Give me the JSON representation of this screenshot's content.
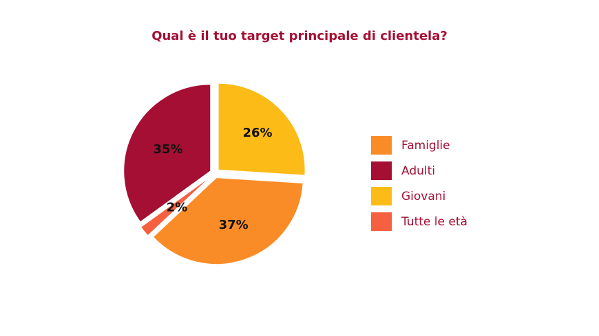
{
  "chart_data": {
    "type": "pie",
    "title": "Qual è il tuo target principale di clientela?",
    "slices": [
      {
        "name": "Famiglie",
        "value": 37,
        "label": "37%",
        "color": "#fa8c28"
      },
      {
        "name": "Adulti",
        "value": 35,
        "label": "35%",
        "color": "#a50f33"
      },
      {
        "name": "Giovani",
        "value": 26,
        "label": "26%",
        "color": "#fcbb16"
      },
      {
        "name": "Tutte le età",
        "value": 2,
        "label": "2%",
        "color": "#f46040"
      }
    ],
    "legend_position": "right",
    "exploded": true
  }
}
